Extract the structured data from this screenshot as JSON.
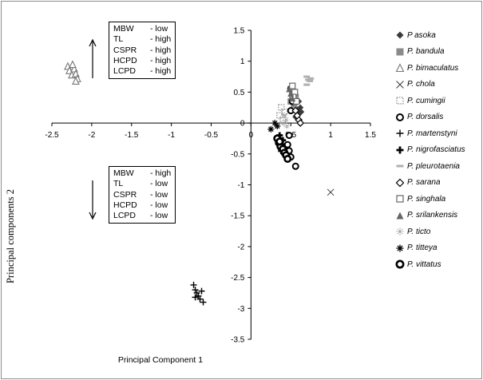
{
  "chart_data": {
    "type": "scatter",
    "xlabel": "Principal Component 1",
    "ylabel": "Principal components 2",
    "xlim": [
      -2.5,
      1.5
    ],
    "ylim": [
      -3.5,
      1.5
    ],
    "xticks": [
      "-2.5",
      "-2",
      "-1.5",
      "-1",
      "-0.5",
      "0",
      "0.5",
      "1",
      "1.5"
    ],
    "yticks": [
      "1.5",
      "1",
      "0.5",
      "0",
      "-0.5",
      "-1",
      "-1.5",
      "-2",
      "-2.5",
      "-3",
      "-3.5"
    ],
    "annotation_boxes": [
      {
        "arrow": "up",
        "rows": [
          {
            "trait": "MBW",
            "level": "- low"
          },
          {
            "trait": "TL",
            "level": "- high"
          },
          {
            "trait": "CSPR",
            "level": "- high"
          },
          {
            "trait": "HCPD",
            "level": "- high"
          },
          {
            "trait": "LCPD",
            "level": "- high"
          }
        ]
      },
      {
        "arrow": "down",
        "rows": [
          {
            "trait": "MBW",
            "level": "- high"
          },
          {
            "trait": "TL",
            "level": "- low"
          },
          {
            "trait": "CSPR",
            "level": "- low"
          },
          {
            "trait": "HCPD",
            "level": "- low"
          },
          {
            "trait": "LCPD",
            "level": "- low"
          }
        ]
      }
    ],
    "legend_position": "right",
    "series": [
      {
        "name": "P asoka",
        "marker": "diamond-filled",
        "color": "#3a3a3a",
        "points": [
          [
            0.55,
            0.3
          ],
          [
            0.58,
            0.22
          ],
          [
            0.6,
            0.15
          ],
          [
            0.62,
            0.25
          ],
          [
            0.56,
            0.1
          ],
          [
            0.6,
            0.35
          ],
          [
            0.63,
            0.18
          ]
        ]
      },
      {
        "name": "P. bandula",
        "marker": "square-filled",
        "color": "#8a8a8a",
        "points": [
          [
            0.5,
            0.55
          ],
          [
            0.52,
            0.45
          ],
          [
            0.55,
            0.38
          ],
          [
            0.53,
            0.5
          ],
          [
            0.56,
            0.42
          ],
          [
            0.5,
            0.35
          ],
          [
            0.54,
            0.3
          ]
        ]
      },
      {
        "name": "P. bimaculatus",
        "marker": "triangle-open",
        "color": "#777777",
        "points": [
          [
            -2.3,
            0.92
          ],
          [
            -2.28,
            0.85
          ],
          [
            -2.25,
            0.78
          ],
          [
            -2.22,
            0.88
          ],
          [
            -2.2,
            0.8
          ],
          [
            -2.18,
            0.72
          ],
          [
            -2.24,
            0.95
          ],
          [
            -2.2,
            0.68
          ]
        ]
      },
      {
        "name": "P. chola",
        "marker": "x",
        "color": "#333333",
        "points": [
          [
            1.0,
            -1.12
          ]
        ]
      },
      {
        "name": "P. cumingii",
        "marker": "dotted-square",
        "color": "#999999",
        "points": [
          [
            0.38,
            0.25
          ],
          [
            0.42,
            0.18
          ],
          [
            0.36,
            0.12
          ],
          [
            0.4,
            0.05
          ]
        ]
      },
      {
        "name": "P. dorsalis",
        "marker": "circle-open-thick",
        "color": "#000000",
        "points": [
          [
            0.5,
            0.55
          ],
          [
            0.52,
            0.35
          ],
          [
            0.5,
            0.2
          ],
          [
            0.48,
            -0.2
          ],
          [
            0.46,
            -0.35
          ],
          [
            0.48,
            -0.45
          ],
          [
            0.5,
            -0.55
          ],
          [
            0.56,
            -0.7
          ]
        ]
      },
      {
        "name": "P. martenstyni",
        "marker": "plus",
        "color": "#000000",
        "points": [
          [
            -0.72,
            -2.62
          ],
          [
            -0.7,
            -2.7
          ],
          [
            -0.68,
            -2.75
          ],
          [
            -0.66,
            -2.8
          ],
          [
            -0.64,
            -2.85
          ],
          [
            -0.62,
            -2.72
          ],
          [
            -0.6,
            -2.9
          ],
          [
            -0.7,
            -2.82
          ]
        ]
      },
      {
        "name": "P. nigrofasciatus",
        "marker": "plus-bold",
        "color": "#000000",
        "points": [
          [
            0.35,
            -0.25
          ],
          [
            0.37,
            -0.3
          ],
          [
            0.39,
            -0.35
          ],
          [
            0.36,
            -0.2
          ],
          [
            0.4,
            -0.28
          ],
          [
            0.42,
            -0.4
          ],
          [
            0.38,
            -0.45
          ]
        ]
      },
      {
        "name": "P. pleurotaenia",
        "marker": "dash",
        "color": "#b0b0b0",
        "points": [
          [
            0.7,
            0.75
          ],
          [
            0.72,
            0.7
          ],
          [
            0.74,
            0.68
          ],
          [
            0.7,
            0.62
          ],
          [
            0.75,
            0.72
          ]
        ]
      },
      {
        "name": "P. sarana",
        "marker": "diamond-open",
        "color": "#000000",
        "points": [
          [
            0.6,
            0.05
          ],
          [
            0.58,
            0.12
          ],
          [
            0.56,
            0.2
          ],
          [
            0.62,
            0.0
          ]
        ]
      },
      {
        "name": "P. singhala",
        "marker": "square-open",
        "color": "#666666",
        "points": [
          [
            0.52,
            0.6
          ],
          [
            0.55,
            0.5
          ],
          [
            0.53,
            0.42
          ],
          [
            0.57,
            0.35
          ]
        ]
      },
      {
        "name": "P. srilankensis",
        "marker": "triangle-filled",
        "color": "#666666",
        "points": [
          [
            0.48,
            0.55
          ],
          [
            0.5,
            0.48
          ],
          [
            0.52,
            0.4
          ]
        ]
      },
      {
        "name": "P. ticto",
        "marker": "star-open",
        "color": "#999999",
        "points": [
          [
            0.42,
            0.12
          ],
          [
            0.44,
            0.05
          ],
          [
            0.4,
            0.0
          ],
          [
            0.45,
            -0.05
          ]
        ]
      },
      {
        "name": "P. titteya",
        "marker": "asterisk",
        "color": "#000000",
        "points": [
          [
            0.25,
            -0.1
          ],
          [
            0.3,
            0.0
          ],
          [
            0.33,
            -0.05
          ]
        ]
      },
      {
        "name": "P. vittatus",
        "marker": "circle-filled-ring",
        "color": "#000000",
        "points": [
          [
            0.33,
            -0.25
          ],
          [
            0.35,
            -0.32
          ],
          [
            0.37,
            -0.38
          ],
          [
            0.4,
            -0.42
          ],
          [
            0.42,
            -0.48
          ],
          [
            0.44,
            -0.52
          ],
          [
            0.46,
            -0.58
          ],
          [
            0.36,
            -0.3
          ]
        ]
      }
    ]
  }
}
